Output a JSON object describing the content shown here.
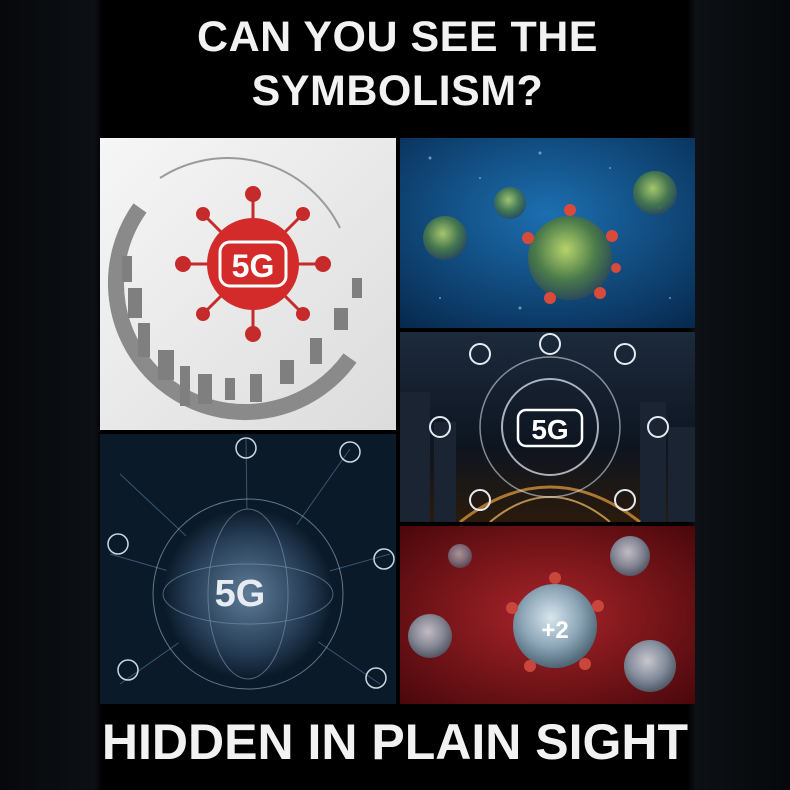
{
  "header": {
    "line1": "CAN YOU SEE THE",
    "line2": "SYMBOLISM?"
  },
  "panels": {
    "red_5g_logo": {
      "label": "5G",
      "accent": "#d32a2a"
    },
    "blue_virus": {
      "background": "#0a3d6e"
    },
    "city_5g": {
      "label": "5G"
    },
    "globe_5g": {
      "label": "5G"
    },
    "red_virus": {
      "label": "+2",
      "background": "#7a0f14"
    }
  },
  "footer": {
    "text": "HIDDEN IN PLAIN SIGHT"
  }
}
